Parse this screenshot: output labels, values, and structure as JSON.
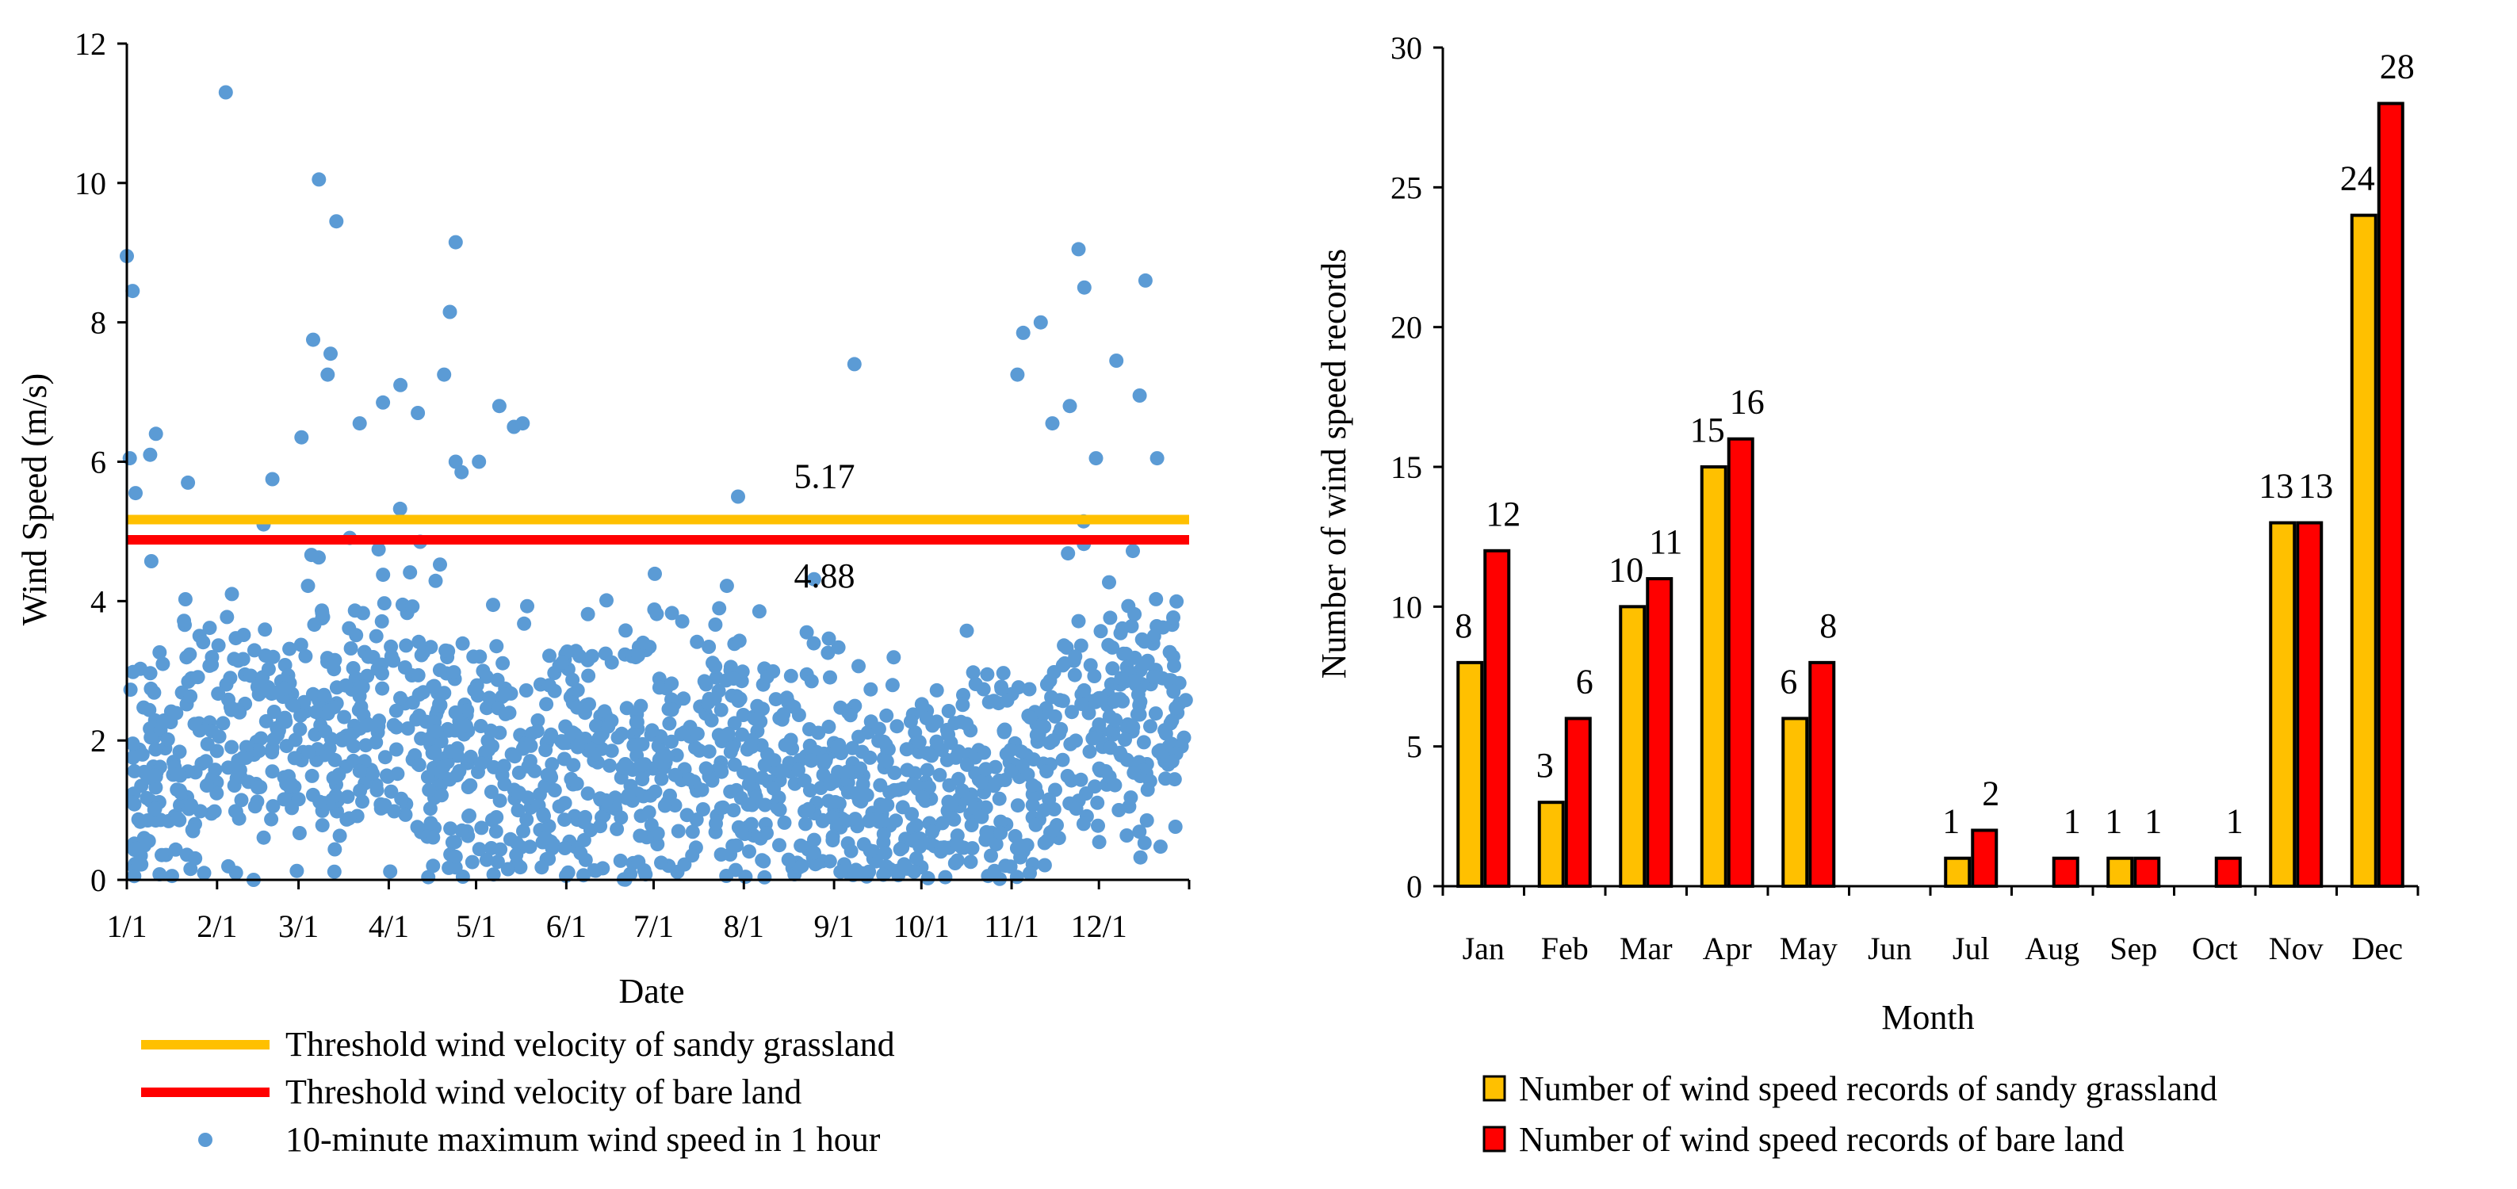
{
  "colors": {
    "sandy": "#FFC000",
    "bare": "#FF0000",
    "points": "#5B9BD5",
    "axis": "#000000"
  },
  "chart_data": [
    {
      "type": "scatter",
      "title": "",
      "xlabel": "Date",
      "ylabel": "Wind Speed (m/s)",
      "ylim": [
        0,
        12
      ],
      "yticks": [
        "0",
        "2",
        "4",
        "6",
        "8",
        "10",
        "12"
      ],
      "xticks": [
        "1/1",
        "2/1",
        "3/1",
        "4/1",
        "5/1",
        "6/1",
        "7/1",
        "8/1",
        "9/1",
        "10/1",
        "11/1",
        "12/1"
      ],
      "xtick_days": [
        0,
        31,
        59,
        90,
        120,
        151,
        181,
        212,
        243,
        273,
        304,
        334
      ],
      "xlim_days": [
        0,
        365
      ],
      "threshold_lines": [
        {
          "name": "Threshold wind velocity of sandy grassland",
          "value": 5.17,
          "label": "5.17",
          "color": "#FFC000"
        },
        {
          "name": "Threshold wind velocity of bare land",
          "value": 4.88,
          "label": "4.88",
          "color": "#FF0000"
        }
      ],
      "scatter_series_name": "10-minute maximum wind speed in 1 hour",
      "notable_points": [
        {
          "day": 0,
          "value": 8.95
        },
        {
          "day": 2,
          "value": 8.45
        },
        {
          "day": 1,
          "value": 6.05
        },
        {
          "day": 3,
          "value": 5.55
        },
        {
          "day": 10,
          "value": 6.4
        },
        {
          "day": 8,
          "value": 6.1
        },
        {
          "day": 21,
          "value": 5.7
        },
        {
          "day": 34,
          "value": 11.3
        },
        {
          "day": 47,
          "value": 5.1
        },
        {
          "day": 50,
          "value": 5.75
        },
        {
          "day": 60,
          "value": 6.35
        },
        {
          "day": 64,
          "value": 7.75
        },
        {
          "day": 66,
          "value": 10.05
        },
        {
          "day": 69,
          "value": 7.25
        },
        {
          "day": 70,
          "value": 7.55
        },
        {
          "day": 72,
          "value": 9.45
        },
        {
          "day": 80,
          "value": 6.55
        },
        {
          "day": 88,
          "value": 6.85
        },
        {
          "day": 94,
          "value": 7.1
        },
        {
          "day": 100,
          "value": 6.7
        },
        {
          "day": 109,
          "value": 7.25
        },
        {
          "day": 111,
          "value": 8.15
        },
        {
          "day": 113,
          "value": 9.15
        },
        {
          "day": 113,
          "value": 6.0
        },
        {
          "day": 115,
          "value": 5.85
        },
        {
          "day": 121,
          "value": 6.0
        },
        {
          "day": 128,
          "value": 6.8
        },
        {
          "day": 133,
          "value": 6.5
        },
        {
          "day": 136,
          "value": 6.55
        },
        {
          "day": 210,
          "value": 5.5
        },
        {
          "day": 250,
          "value": 7.4
        },
        {
          "day": 308,
          "value": 7.85
        },
        {
          "day": 306,
          "value": 7.25
        },
        {
          "day": 314,
          "value": 8.0
        },
        {
          "day": 318,
          "value": 6.55
        },
        {
          "day": 324,
          "value": 6.8
        },
        {
          "day": 327,
          "value": 9.05
        },
        {
          "day": 329,
          "value": 8.5
        },
        {
          "day": 333,
          "value": 6.05
        },
        {
          "day": 340,
          "value": 7.45
        },
        {
          "day": 348,
          "value": 6.95
        },
        {
          "day": 350,
          "value": 8.6
        },
        {
          "day": 354,
          "value": 6.05
        }
      ],
      "legend": [
        "Threshold wind velocity of sandy grassland",
        "Threshold wind velocity of bare land",
        "10-minute maximum wind speed in 1 hour"
      ]
    },
    {
      "type": "bar",
      "title": "",
      "xlabel": "Month",
      "ylabel": "Number of wind speed records",
      "ylim": [
        0,
        30
      ],
      "yticks": [
        "0",
        "5",
        "10",
        "15",
        "20",
        "25",
        "30"
      ],
      "categories": [
        "Jan",
        "Feb",
        "Mar",
        "Apr",
        "May",
        "Jun",
        "Jul",
        "Aug",
        "Sep",
        "Oct",
        "Nov",
        "Dec"
      ],
      "series": [
        {
          "name": "Number of wind speed records of sandy grassland",
          "values": [
            8,
            3,
            10,
            15,
            6,
            0,
            1,
            0,
            1,
            0,
            13,
            24
          ],
          "color": "#FFC000"
        },
        {
          "name": "Number of wind speed records of bare land",
          "values": [
            12,
            6,
            11,
            16,
            8,
            0,
            2,
            1,
            1,
            1,
            13,
            28
          ],
          "color": "#FF0000"
        }
      ],
      "legend": [
        "Number of wind speed records of sandy grassland",
        "Number of wind speed records of bare land"
      ]
    }
  ]
}
